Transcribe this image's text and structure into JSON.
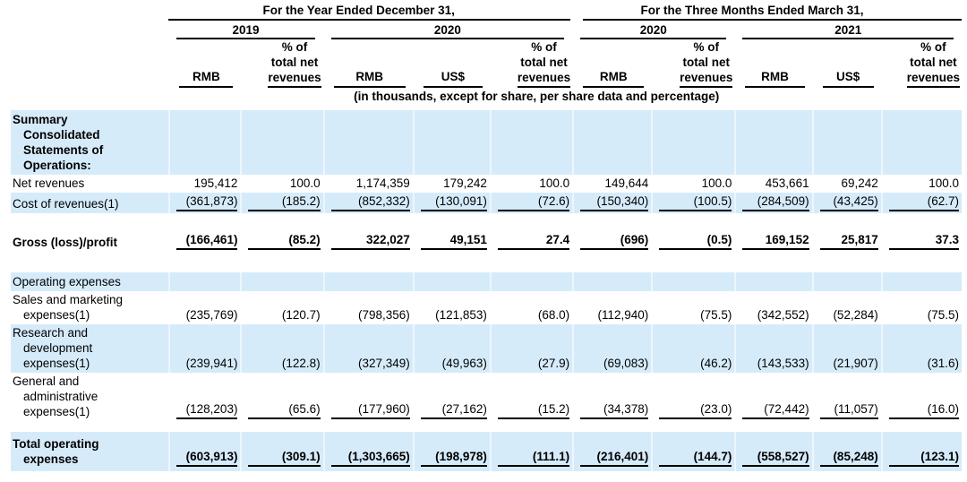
{
  "colors": {
    "highlight": "#d6ebfa",
    "rule": "#000000",
    "text": "#000000"
  },
  "table": {
    "groups": [
      {
        "label": "For the Year Ended December 31,"
      },
      {
        "label": "For the Three Months Ended March 31,"
      }
    ],
    "periods": [
      {
        "label": "2019"
      },
      {
        "label": "2020"
      },
      {
        "label": "2020"
      },
      {
        "label": "2021"
      }
    ],
    "column_headers": [
      "RMB",
      "% of\ntotal net\nrevenues",
      "RMB",
      "US$",
      "% of\ntotal net\nrevenues",
      "RMB",
      "% of\ntotal net\nrevenues",
      "RMB",
      "US$",
      "% of\ntotal net\nrevenues"
    ],
    "note": "(in thousands, except for share, per share data and percentage)",
    "rows": [
      {
        "label": "Summary\nConsolidated\nStatements of\nOperations:",
        "values": []
      },
      {
        "label": "Net revenues",
        "values": [
          "195,412",
          "100.0",
          "1,174,359",
          "179,242",
          "100.0",
          "149,644",
          "100.0",
          "453,661",
          "69,242",
          "100.0"
        ]
      },
      {
        "label": "Cost of revenues(1)",
        "values": [
          "(361,873)",
          "(185.2)",
          "(852,332)",
          "(130,091)",
          "(72.6)",
          "(150,340)",
          "(100.5)",
          "(284,509)",
          "(43,425)",
          "(62.7)"
        ]
      },
      {
        "label": "Gross (loss)/profit",
        "values": [
          "(166,461)",
          "(85.2)",
          "322,027",
          "49,151",
          "27.4",
          "(696)",
          "(0.5)",
          "169,152",
          "25,817",
          "37.3"
        ]
      },
      {
        "label": "Operating expenses",
        "values": []
      },
      {
        "label": "Sales and marketing\nexpenses(1)",
        "values": [
          "(235,769)",
          "(120.7)",
          "(798,356)",
          "(121,853)",
          "(68.0)",
          "(112,940)",
          "(75.5)",
          "(342,552)",
          "(52,284)",
          "(75.5)"
        ]
      },
      {
        "label": "Research and\ndevelopment\nexpenses(1)",
        "values": [
          "(239,941)",
          "(122.8)",
          "(327,349)",
          "(49,963)",
          "(27.9)",
          "(69,083)",
          "(46.2)",
          "(143,533)",
          "(21,907)",
          "(31.6)"
        ]
      },
      {
        "label": "General and\nadministrative\nexpenses(1)",
        "values": [
          "(128,203)",
          "(65.6)",
          "(177,960)",
          "(27,162)",
          "(15.2)",
          "(34,378)",
          "(23.0)",
          "(72,442)",
          "(11,057)",
          "(16.0)"
        ]
      },
      {
        "label": "Total operating\nexpenses",
        "values": [
          "(603,913)",
          "(309.1)",
          "(1,303,665)",
          "(198,978)",
          "(111.1)",
          "(216,401)",
          "(144.7)",
          "(558,527)",
          "(85,248)",
          "(123.1)"
        ]
      }
    ]
  }
}
